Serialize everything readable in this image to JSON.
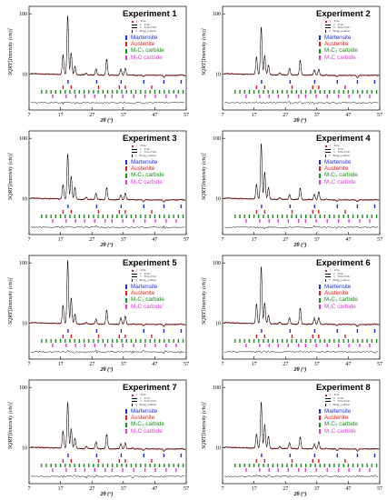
{
  "common": {
    "ylabel": "SQRT[Intensity (cts)]",
    "xlabel": "2θ (°)",
    "yticks": [
      "100",
      "10"
    ],
    "xticks": [
      "7",
      "17",
      "27",
      "37",
      "47",
      "57"
    ],
    "series_legend": [
      {
        "num": "1",
        "label": "Yobs"
      },
      {
        "num": "2",
        "label": "Ycalc"
      },
      {
        "num": "3",
        "label": "Yobs-Ycalc"
      },
      {
        "num": "4",
        "label": "Bragg_position"
      }
    ],
    "phases": [
      {
        "name": "Martensite",
        "color": "#1f2ee6"
      },
      {
        "name": "Austenite",
        "color": "#e01b1b"
      },
      {
        "name": "M₇C₃ carbide",
        "color": "#1a8c1a"
      },
      {
        "name": "M₃C carbide",
        "color": "#e23ad8"
      }
    ],
    "colors": {
      "observed": "#d32020",
      "calculated": "#000000"
    }
  },
  "panels": [
    {
      "title": "Experiment 1"
    },
    {
      "title": "Experiment 2"
    },
    {
      "title": "Experiment 3"
    },
    {
      "title": "Experiment 4"
    },
    {
      "title": "Experiment 5"
    },
    {
      "title": "Experiment 6"
    },
    {
      "title": "Experiment 7"
    },
    {
      "title": "Experiment 8"
    }
  ],
  "chart_data": {
    "type": "line",
    "description_scale": "sqrt intensity",
    "x_range": [
      7,
      57
    ],
    "y_ticks": [
      10,
      100
    ],
    "peaks": [
      {
        "x": 17.8,
        "h": 45
      },
      {
        "x": 19.3,
        "h": 102
      },
      {
        "x": 20.4,
        "h": 55
      },
      {
        "x": 21.6,
        "h": 35
      },
      {
        "x": 25.2,
        "h": 22
      },
      {
        "x": 28.3,
        "h": 28
      },
      {
        "x": 31.7,
        "h": 40
      },
      {
        "x": 36.2,
        "h": 28
      },
      {
        "x": 37.6,
        "h": 30
      },
      {
        "x": 40.0,
        "h": 20
      },
      {
        "x": 43.4,
        "h": 17
      },
      {
        "x": 49.9,
        "h": 16
      },
      {
        "x": 55.4,
        "h": 20
      }
    ],
    "baseline": 19,
    "bragg_positions": {
      "Martensite": [
        19.4,
        28.5,
        36.3,
        43.5,
        49.9,
        55.4
      ],
      "Austenite": [
        17.8,
        20.4,
        29.1,
        35.7,
        37.6,
        46.0
      ],
      "M7C3": [
        11,
        12.5,
        14,
        15.5,
        17,
        18.5,
        20,
        21.5,
        23,
        24.5,
        26,
        27.5,
        29,
        30.5,
        32,
        33.5,
        35,
        36.5,
        38,
        39.5,
        41,
        42.5,
        44,
        45.5,
        47,
        48.5,
        50,
        51.5,
        53,
        54.5,
        56
      ],
      "M3C": [
        14.5,
        18.8,
        21.8,
        24.7,
        27.9,
        31.2,
        33.4,
        36.8,
        40.3,
        43.9,
        47.2,
        50.6,
        53.8
      ]
    }
  }
}
